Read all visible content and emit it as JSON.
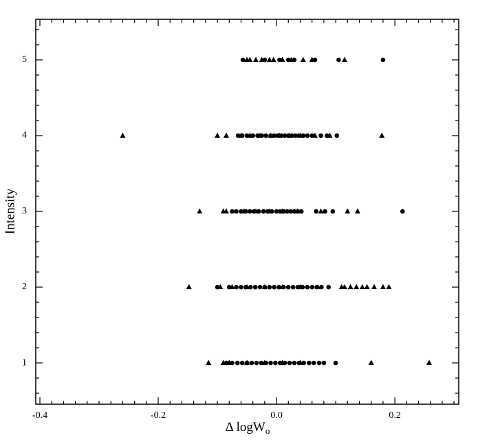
{
  "chart_data": {
    "type": "scatter",
    "xlabel": {
      "text": "Δ logW",
      "subscript": "o"
    },
    "ylabel": "Intensity",
    "xlim": [
      -0.407,
      0.308
    ],
    "ylim": [
      0.455,
      5.536
    ],
    "xticks": [
      -0.4,
      -0.2,
      {
        "value": 0,
        "label": "0.0"
      },
      0.2
    ],
    "yticks": [
      1,
      2,
      3,
      4,
      5
    ],
    "xminorticks": [
      -0.38,
      -0.36,
      -0.34,
      -0.32,
      -0.3,
      -0.28,
      -0.26,
      -0.24,
      -0.22,
      -0.18,
      -0.16,
      -0.14,
      -0.12,
      -0.1,
      -0.08,
      -0.06,
      -0.04,
      -0.02,
      0.02,
      0.04,
      0.06,
      0.08,
      0.1,
      0.12,
      0.14,
      0.16,
      0.18,
      0.22,
      0.24,
      0.26,
      0.28,
      0.3
    ],
    "yminorticks": [
      0.6,
      0.8,
      1.2,
      1.4,
      1.6,
      1.8,
      2.2,
      2.4,
      2.6,
      2.8,
      3.2,
      3.4,
      3.6,
      3.8,
      4.2,
      4.4,
      4.6,
      4.8,
      5.2,
      5.4
    ],
    "color": "#000000",
    "series": [
      {
        "marker": "circle",
        "x": [
          -0.057,
          -0.02,
          0.005,
          0.02,
          0.03,
          0.065,
          0.105,
          0.18
        ],
        "y": [
          5,
          5,
          5,
          5,
          5,
          5,
          5,
          5
        ]
      },
      {
        "marker": "circle",
        "x": [
          -0.065,
          -0.058,
          -0.05,
          -0.04,
          -0.032,
          -0.025,
          -0.018,
          -0.01,
          -0.004,
          0.002,
          0.008,
          0.014,
          0.02,
          0.026,
          0.032,
          0.038,
          0.045,
          0.052,
          0.06,
          0.075,
          0.085,
          0.102
        ],
        "y": [
          4,
          4,
          4,
          4,
          4,
          4,
          4,
          4,
          4,
          4,
          4,
          4,
          4,
          4,
          4,
          4,
          4,
          4,
          4,
          4,
          4,
          4
        ]
      },
      {
        "marker": "circle",
        "x": [
          -0.075,
          -0.068,
          -0.06,
          -0.052,
          -0.045,
          -0.038,
          -0.03,
          -0.022,
          -0.015,
          -0.008,
          0,
          0.006,
          0.012,
          0.018,
          0.024,
          0.03,
          0.036,
          0.042,
          0.067,
          0.082,
          0.095,
          0.213
        ],
        "y": [
          3,
          3,
          3,
          3,
          3,
          3,
          3,
          3,
          3,
          3,
          3,
          3,
          3,
          3,
          3,
          3,
          3,
          3,
          3,
          3,
          3,
          3
        ]
      },
      {
        "marker": "circle",
        "x": [
          -0.1,
          -0.08,
          -0.068,
          -0.06,
          -0.052,
          -0.044,
          -0.036,
          -0.028,
          -0.02,
          -0.012,
          -0.004,
          0.004,
          0.012,
          0.02,
          0.028,
          0.036,
          0.044,
          0.052,
          0.06,
          0.068,
          0.076,
          0.088
        ],
        "y": [
          2,
          2,
          2,
          2,
          2,
          2,
          2,
          2,
          2,
          2,
          2,
          2,
          2,
          2,
          2,
          2,
          2,
          2,
          2,
          2,
          2,
          2
        ]
      },
      {
        "marker": "circle",
        "x": [
          -0.085,
          -0.075,
          -0.066,
          -0.058,
          -0.05,
          -0.042,
          -0.034,
          -0.026,
          -0.018,
          -0.01,
          -0.002,
          0.006,
          0.014,
          0.022,
          0.03,
          0.038,
          0.046,
          0.055,
          0.063,
          0.072,
          0.08,
          0.1
        ],
        "y": [
          1,
          1,
          1,
          1,
          1,
          1,
          1,
          1,
          1,
          1,
          1,
          1,
          1,
          1,
          1,
          1,
          1,
          1,
          1,
          1,
          1,
          1
        ]
      },
      {
        "marker": "triangle",
        "x": [
          -0.05,
          -0.045,
          -0.035,
          -0.025,
          -0.012,
          -0.005,
          0.01,
          0.025,
          0.045,
          0.06,
          0.115
        ],
        "y": [
          5,
          5,
          5,
          5,
          5,
          5,
          5,
          5,
          5,
          5,
          5
        ]
      },
      {
        "marker": "triangle",
        "x": [
          -0.26,
          -0.1,
          -0.085,
          -0.06,
          -0.045,
          -0.028,
          -0.01,
          0.005,
          0.022,
          0.04,
          0.065,
          0.09,
          0.178
        ],
        "y": [
          4,
          4,
          4,
          4,
          4,
          4,
          4,
          4,
          4,
          4,
          4,
          4,
          4
        ]
      },
      {
        "marker": "triangle",
        "x": [
          -0.13,
          -0.09,
          -0.085,
          -0.055,
          -0.035,
          -0.012,
          0.01,
          0.035,
          0.075,
          0.12,
          0.137
        ],
        "y": [
          3,
          3,
          3,
          3,
          3,
          3,
          3,
          3,
          3,
          3,
          3
        ]
      },
      {
        "marker": "triangle",
        "x": [
          -0.148,
          -0.095,
          -0.075,
          -0.05,
          -0.02,
          0.01,
          0.04,
          0.07,
          0.11,
          0.115,
          0.125,
          0.135,
          0.145,
          0.153,
          0.165,
          0.18,
          0.19
        ],
        "y": [
          2,
          2,
          2,
          2,
          2,
          2,
          2,
          2,
          2,
          2,
          2,
          2,
          2,
          2,
          2,
          2,
          2
        ]
      },
      {
        "marker": "triangle",
        "x": [
          -0.115,
          -0.09,
          -0.08,
          -0.05,
          -0.02,
          0.01,
          0.04,
          0.16,
          0.258
        ],
        "y": [
          1,
          1,
          1,
          1,
          1,
          1,
          1,
          1,
          1
        ]
      }
    ]
  }
}
